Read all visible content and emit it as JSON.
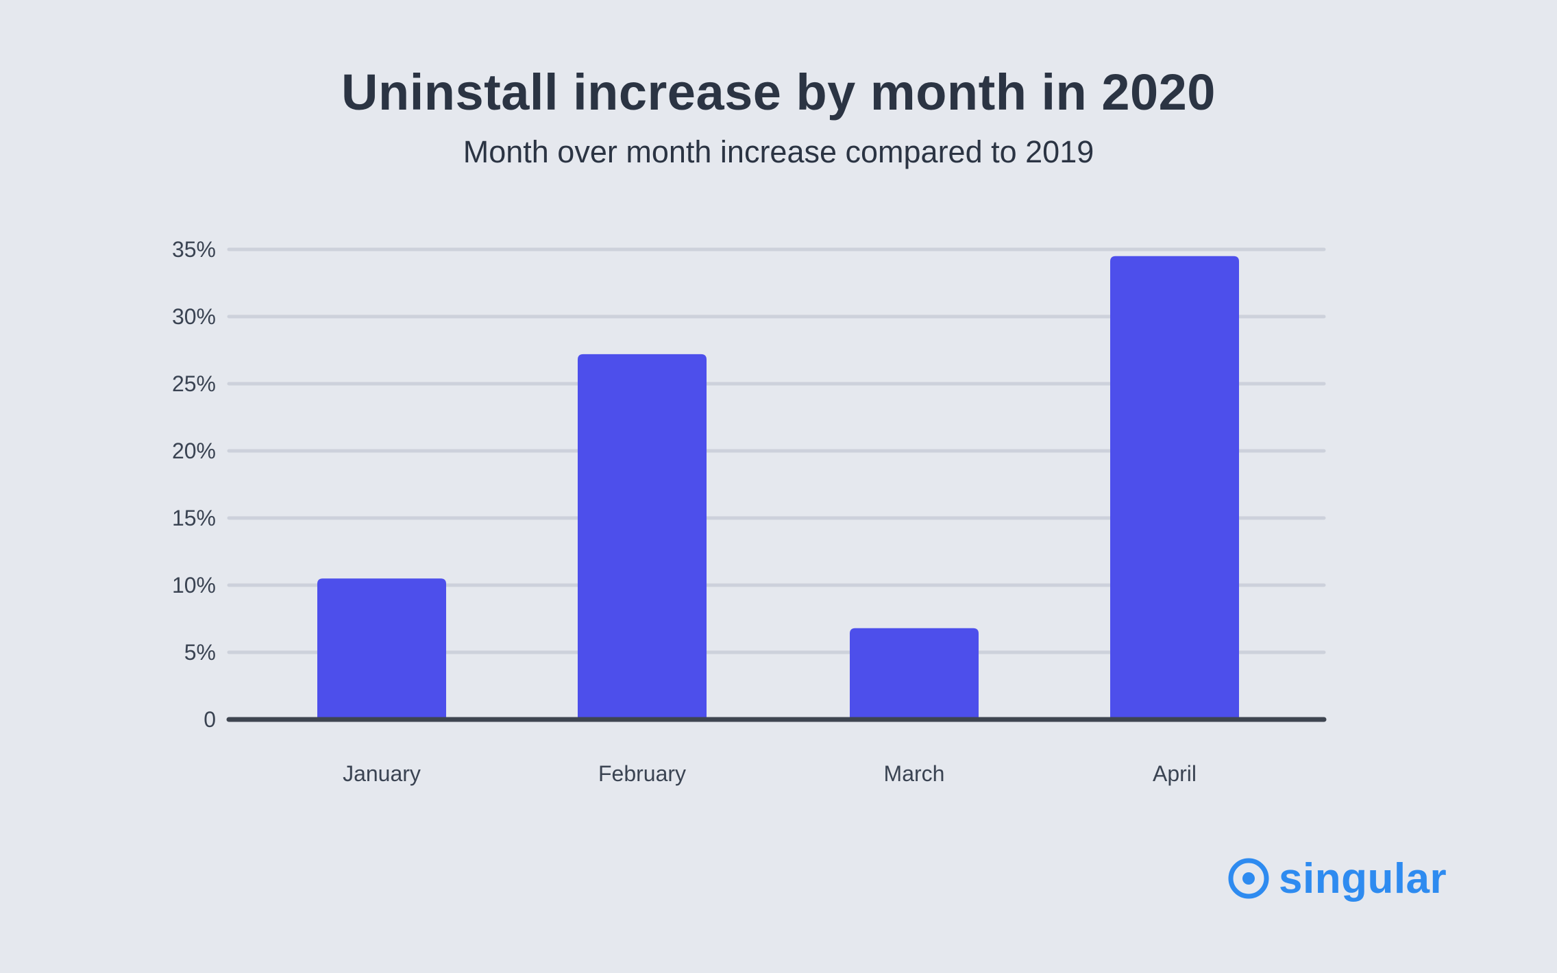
{
  "title": "Uninstall increase by month in 2020",
  "subtitle": "Month over month increase compared to 2019",
  "colors": {
    "bar": "#4D4FEB",
    "grid": "#CDD1DB",
    "baseline": "#3E4550",
    "text": "#2B3443",
    "brand": "#2E8BF0"
  },
  "logo": {
    "text": "singular",
    "icon": "singular-logo-icon"
  },
  "chart_data": {
    "type": "bar",
    "categories": [
      "January",
      "February",
      "March",
      "April"
    ],
    "values": [
      10.5,
      27.2,
      6.8,
      34.5
    ],
    "title": "Uninstall increase by month in 2020",
    "subtitle": "Month over month increase compared to 2019",
    "ylim": [
      0,
      35
    ],
    "yticks": [
      0,
      5,
      10,
      15,
      20,
      25,
      30,
      35
    ],
    "ytick_labels": [
      "0",
      "5%",
      "10%",
      "15%",
      "20%",
      "25%",
      "30%",
      "35%"
    ],
    "grid": true,
    "legend": false
  }
}
